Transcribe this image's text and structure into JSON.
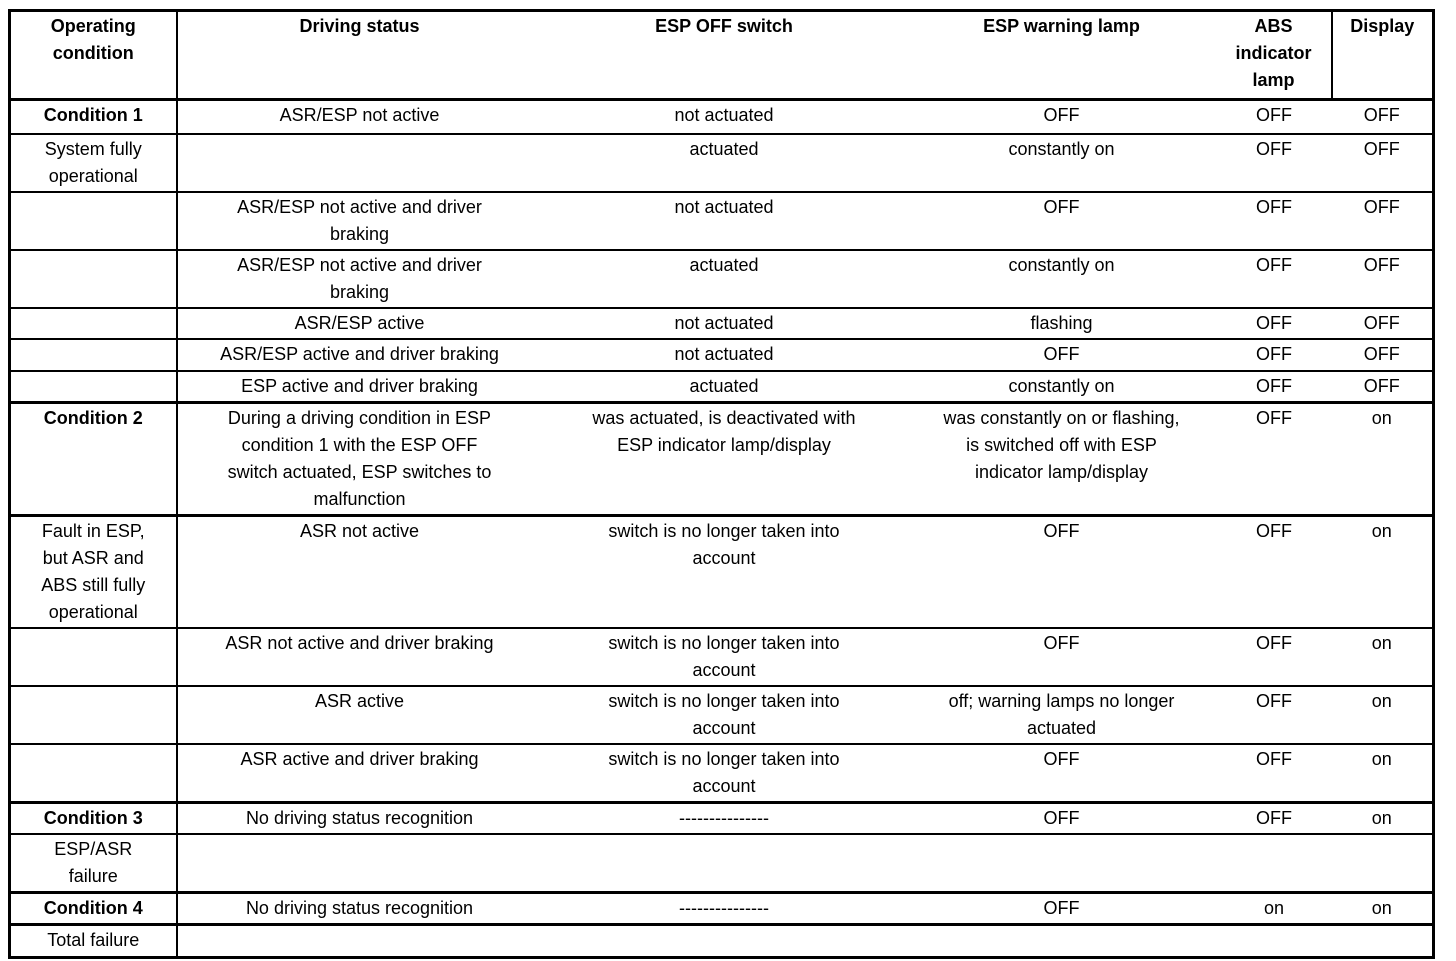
{
  "page": {
    "background_color": "#ffffff",
    "table_border_color": "#000000"
  },
  "table": {
    "columns": [
      {
        "label": "Operating\ncondition"
      },
      {
        "label": "Driving status"
      },
      {
        "label": "ESP OFF switch"
      },
      {
        "label": "ESP warning lamp"
      },
      {
        "label": "ABS\nindicator\nlamp"
      },
      {
        "label": "Display"
      }
    ],
    "rows": [
      {
        "bold_first": true,
        "thick_top": false,
        "cells": [
          "Condition 1",
          "ASR/ESP not active",
          "not actuated",
          "OFF",
          "OFF",
          "OFF"
        ]
      },
      {
        "bold_first": false,
        "thick_top": false,
        "cells": [
          "System fully\noperational",
          "",
          "actuated",
          "constantly on",
          "OFF",
          "OFF"
        ]
      },
      {
        "bold_first": false,
        "thick_top": false,
        "cells": [
          "",
          "ASR/ESP not active and driver\nbraking",
          "not actuated",
          "OFF",
          "OFF",
          "OFF"
        ]
      },
      {
        "bold_first": false,
        "thick_top": false,
        "cells": [
          "",
          "ASR/ESP not active and driver\nbraking",
          "actuated",
          "constantly on",
          "OFF",
          "OFF"
        ]
      },
      {
        "bold_first": false,
        "thick_top": false,
        "cells": [
          "",
          "ASR/ESP active",
          "not actuated",
          "flashing",
          "OFF",
          "OFF"
        ]
      },
      {
        "bold_first": false,
        "thick_top": false,
        "cells": [
          "",
          "ASR/ESP active and driver braking",
          "not actuated",
          "OFF",
          "OFF",
          "OFF"
        ]
      },
      {
        "bold_first": false,
        "thick_top": false,
        "cells": [
          "",
          "ESP active and driver braking",
          "actuated",
          "constantly on",
          "OFF",
          "OFF"
        ]
      },
      {
        "bold_first": true,
        "thick_top": true,
        "cells": [
          "Condition 2",
          "During a driving condition in ESP\ncondition 1 with the ESP OFF\nswitch actuated, ESP switches to\nmalfunction",
          "was actuated, is deactivated with\nESP indicator lamp/display",
          "was constantly on or flashing,\nis switched off with ESP\nindicator lamp/display",
          "OFF",
          "on"
        ]
      },
      {
        "bold_first": false,
        "thick_top": true,
        "cells": [
          "Fault in ESP,\nbut ASR and\nABS still fully\noperational",
          "ASR not active",
          "switch is no longer taken into\naccount",
          "OFF",
          "OFF",
          "on"
        ]
      },
      {
        "bold_first": false,
        "thick_top": false,
        "cells": [
          "",
          "ASR not active and driver braking",
          "switch is no longer taken into\naccount",
          "OFF",
          "OFF",
          "on"
        ]
      },
      {
        "bold_first": false,
        "thick_top": false,
        "cells": [
          "",
          "ASR active",
          "switch is no longer taken into\naccount",
          "off; warning lamps no longer\nactuated",
          "OFF",
          "on"
        ]
      },
      {
        "bold_first": false,
        "thick_top": false,
        "cells": [
          "",
          "ASR active and driver braking",
          "switch is no longer taken into\naccount",
          "OFF",
          "OFF",
          "on"
        ]
      },
      {
        "bold_first": true,
        "thick_top": true,
        "cells": [
          "Condition 3",
          "No driving status recognition",
          "---------------",
          "OFF",
          "OFF",
          "on"
        ]
      },
      {
        "bold_first": false,
        "thick_top": false,
        "cells": [
          "ESP/ASR\nfailure",
          "",
          "",
          "",
          "",
          ""
        ]
      },
      {
        "bold_first": true,
        "thick_top": true,
        "cells": [
          "Condition 4",
          "No driving status recognition",
          "---------------",
          "OFF",
          "on",
          "on"
        ]
      },
      {
        "bold_first": false,
        "thick_top": true,
        "cells": [
          "Total failure",
          "",
          "",
          "",
          "",
          ""
        ]
      }
    ]
  }
}
